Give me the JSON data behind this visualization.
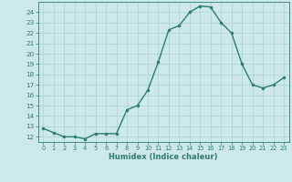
{
  "x": [
    0,
    1,
    2,
    3,
    4,
    5,
    6,
    7,
    8,
    9,
    10,
    11,
    12,
    13,
    14,
    15,
    16,
    17,
    18,
    19,
    20,
    21,
    22,
    23
  ],
  "y": [
    12.8,
    12.4,
    12.0,
    12.0,
    11.8,
    12.3,
    12.3,
    12.3,
    14.6,
    15.0,
    16.5,
    19.2,
    22.3,
    22.7,
    24.0,
    24.6,
    24.5,
    23.0,
    22.0,
    19.0,
    17.0,
    16.7,
    17.0,
    17.7
  ],
  "xlabel": "Humidex (Indice chaleur)",
  "xlim": [
    -0.5,
    23.5
  ],
  "ylim": [
    11.5,
    25.0
  ],
  "yticks": [
    12,
    13,
    14,
    15,
    16,
    17,
    18,
    19,
    20,
    21,
    22,
    23,
    24
  ],
  "xticks": [
    0,
    1,
    2,
    3,
    4,
    5,
    6,
    7,
    8,
    9,
    10,
    11,
    12,
    13,
    14,
    15,
    16,
    17,
    18,
    19,
    20,
    21,
    22,
    23
  ],
  "line_color": "#2e7d6b",
  "marker_color": "#2e7d6b",
  "bg_color": "#cce8e8",
  "grid_color": "#b0d4d4",
  "xlabel_color": "#2e7d6b",
  "tick_color": "#2e7d6b",
  "spine_color": "#2e7d6b"
}
